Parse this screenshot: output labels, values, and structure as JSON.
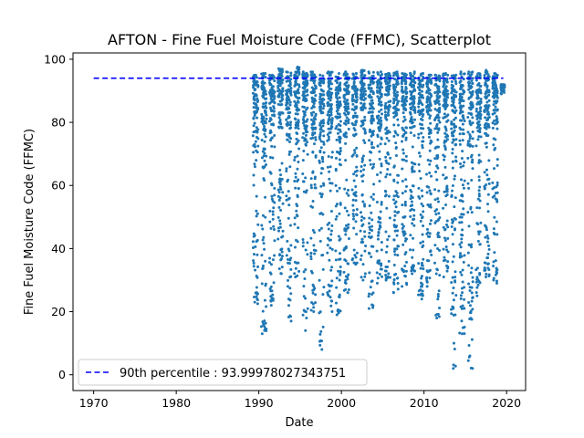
{
  "chart_data": {
    "type": "scatter",
    "title": "AFTON - Fine Fuel Moisture Code (FFMC), Scatterplot",
    "xlabel": "Date",
    "ylabel": "Fine Fuel Moisture Code (FFMC)",
    "xlim": [
      1967.5,
      2022.3
    ],
    "ylim": [
      -5,
      102
    ],
    "xticks": [
      1970,
      1980,
      1990,
      2000,
      2010,
      2020
    ],
    "yticks": [
      0,
      20,
      40,
      60,
      80,
      100
    ],
    "xtick_labels": [
      "1970",
      "1980",
      "1990",
      "2000",
      "2010",
      "2020"
    ],
    "ytick_labels": [
      "0",
      "20",
      "40",
      "60",
      "80",
      "100"
    ],
    "grid": false,
    "legend": {
      "placement": "lower-left",
      "entries": [
        "90th percentile : 93.99978027343751"
      ]
    },
    "series": [
      {
        "kind": "points",
        "color": "#1f77b4",
        "seasons": [
          {
            "year": 1989,
            "min": 22.5,
            "low": 26.0,
            "p10": 64.0,
            "max": 95.0
          },
          {
            "year": 1990,
            "min": 13.0,
            "low": 17.0,
            "p10": 63.0,
            "max": 95.5
          },
          {
            "year": 1991,
            "min": 22.0,
            "low": 29.0,
            "p10": 69.0,
            "max": 95.0
          },
          {
            "year": 1992,
            "min": 32.0,
            "low": 40.0,
            "p10": 71.0,
            "max": 97.0
          },
          {
            "year": 1993,
            "min": 17.0,
            "low": 30.0,
            "p10": 66.0,
            "max": 96.0
          },
          {
            "year": 1994,
            "min": 31.0,
            "low": 36.0,
            "p10": 70.0,
            "max": 97.5
          },
          {
            "year": 1995,
            "min": 14.0,
            "low": 25.0,
            "p10": 67.0,
            "max": 96.0
          },
          {
            "year": 1996,
            "min": 20.0,
            "low": 27.0,
            "p10": 69.0,
            "max": 96.0
          },
          {
            "year": 1997,
            "min": 8.0,
            "low": 19.0,
            "p10": 64.0,
            "max": 95.0
          },
          {
            "year": 1998,
            "min": 20.0,
            "low": 29.0,
            "p10": 70.0,
            "max": 96.0
          },
          {
            "year": 1999,
            "min": 19.0,
            "low": 25.0,
            "p10": 67.0,
            "max": 95.5
          },
          {
            "year": 2000,
            "min": 26.0,
            "low": 32.0,
            "p10": 69.0,
            "max": 96.0
          },
          {
            "year": 2001,
            "min": 35.0,
            "low": 40.0,
            "p10": 72.0,
            "max": 95.5
          },
          {
            "year": 2002,
            "min": 30.0,
            "low": 36.0,
            "p10": 70.0,
            "max": 96.5
          },
          {
            "year": 2003,
            "min": 21.0,
            "low": 30.0,
            "p10": 68.0,
            "max": 96.0
          },
          {
            "year": 2004,
            "min": 29.0,
            "low": 36.0,
            "p10": 71.0,
            "max": 96.0
          },
          {
            "year": 2005,
            "min": 30.0,
            "low": 35.0,
            "p10": 70.0,
            "max": 95.5
          },
          {
            "year": 2006,
            "min": 26.0,
            "low": 32.0,
            "p10": 68.0,
            "max": 96.0
          },
          {
            "year": 2007,
            "min": 28.0,
            "low": 36.0,
            "p10": 71.0,
            "max": 95.5
          },
          {
            "year": 2008,
            "min": 32.0,
            "low": 38.0,
            "p10": 71.0,
            "max": 96.0
          },
          {
            "year": 2009,
            "min": 24.0,
            "low": 30.0,
            "p10": 67.0,
            "max": 95.5
          },
          {
            "year": 2010,
            "min": 28.0,
            "low": 35.0,
            "p10": 70.0,
            "max": 95.0
          },
          {
            "year": 2011,
            "min": 18.0,
            "low": 28.0,
            "p10": 65.0,
            "max": 95.0
          },
          {
            "year": 2012,
            "min": 31.0,
            "low": 37.0,
            "p10": 70.0,
            "max": 95.5
          },
          {
            "year": 2013,
            "min": 2.0,
            "low": 20.0,
            "p10": 60.0,
            "max": 95.0
          },
          {
            "year": 2014,
            "min": 13.0,
            "low": 22.0,
            "p10": 63.0,
            "max": 96.0
          },
          {
            "year": 2015,
            "min": 2.0,
            "low": 18.0,
            "p10": 62.0,
            "max": 96.0
          },
          {
            "year": 2016,
            "min": 25.0,
            "low": 31.0,
            "p10": 68.0,
            "max": 95.5
          },
          {
            "year": 2017,
            "min": 31.0,
            "low": 38.0,
            "p10": 71.0,
            "max": 96.5
          },
          {
            "year": 2018,
            "min": 29.0,
            "low": 36.0,
            "p10": 70.0,
            "max": 95.5
          },
          {
            "year": 2019,
            "min": 89.0,
            "low": 90.0,
            "p10": 90.5,
            "max": 92.0
          }
        ]
      },
      {
        "name": "90th percentile : 93.99978027343751",
        "kind": "hline",
        "color": "#0000ff",
        "y": 93.99978027343751,
        "x": [
          1970,
          2019.6
        ]
      }
    ]
  }
}
